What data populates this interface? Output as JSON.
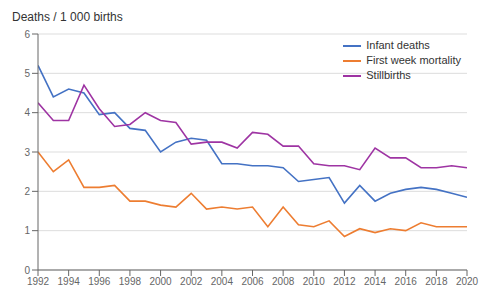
{
  "chart_data": {
    "type": "line",
    "y_label": "Deaths / 1 000 births",
    "x": [
      1992,
      1993,
      1994,
      1995,
      1996,
      1997,
      1998,
      1999,
      2000,
      2001,
      2002,
      2003,
      2004,
      2005,
      2006,
      2007,
      2008,
      2009,
      2010,
      2011,
      2012,
      2013,
      2014,
      2015,
      2016,
      2017,
      2018,
      2019,
      2020
    ],
    "series": [
      {
        "name": "Infant deaths",
        "color": "#4472c4",
        "values": [
          5.2,
          4.4,
          4.6,
          4.5,
          3.95,
          4.0,
          3.6,
          3.55,
          3.0,
          3.25,
          3.35,
          3.3,
          2.7,
          2.7,
          2.65,
          2.65,
          2.6,
          2.25,
          2.3,
          2.35,
          1.7,
          2.15,
          1.75,
          1.95,
          2.05,
          2.1,
          2.05,
          1.95,
          1.85
        ]
      },
      {
        "name": "First week mortality",
        "color": "#ed7d31",
        "values": [
          3.0,
          2.5,
          2.8,
          2.1,
          2.1,
          2.15,
          1.75,
          1.75,
          1.65,
          1.6,
          1.95,
          1.55,
          1.6,
          1.55,
          1.6,
          1.1,
          1.6,
          1.15,
          1.1,
          1.25,
          0.85,
          1.05,
          0.95,
          1.05,
          1.0,
          1.2,
          1.1,
          1.1,
          1.1
        ]
      },
      {
        "name": "Stillbirths",
        "color": "#9e34a3",
        "values": [
          4.25,
          3.8,
          3.8,
          4.7,
          4.1,
          3.65,
          3.7,
          4.0,
          3.8,
          3.75,
          3.2,
          3.25,
          3.25,
          3.1,
          3.5,
          3.45,
          3.15,
          3.15,
          2.7,
          2.65,
          2.65,
          2.55,
          3.1,
          2.85,
          2.85,
          2.6,
          2.6,
          2.65,
          2.6
        ]
      }
    ],
    "xlim": [
      1992,
      2020
    ],
    "xticks": [
      1992,
      1994,
      1996,
      1998,
      2000,
      2002,
      2004,
      2006,
      2008,
      2010,
      2012,
      2014,
      2016,
      2018,
      2020
    ],
    "ylim": [
      0,
      6
    ],
    "yticks": [
      0,
      1,
      2,
      3,
      4,
      5,
      6
    ],
    "grid": true,
    "legend": "upper right"
  }
}
